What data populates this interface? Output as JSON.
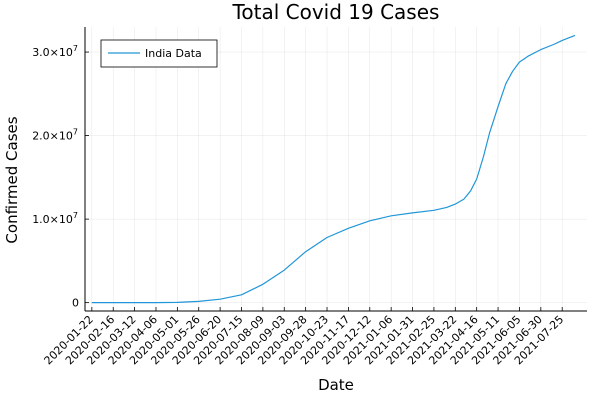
{
  "chart_data": {
    "type": "line",
    "title": "Total Covid 19 Cases",
    "xlabel": "Date",
    "ylabel": "Confirmed Cases",
    "x_tick_labels": [
      "2020-01-22",
      "2020-02-16",
      "2020-03-12",
      "2020-04-06",
      "2020-05-01",
      "2020-05-26",
      "2020-06-20",
      "2020-07-15",
      "2020-08-09",
      "2020-09-03",
      "2020-09-28",
      "2020-10-23",
      "2020-11-17",
      "2020-12-12",
      "2021-01-06",
      "2021-01-31",
      "2021-02-25",
      "2021-03-22",
      "2021-04-16",
      "2021-05-11",
      "2021-06-05",
      "2021-06-30",
      "2021-07-25"
    ],
    "y_ticks": [
      {
        "value": 0,
        "mantissa": "0",
        "exp": ""
      },
      {
        "value": 10000000,
        "mantissa": "1.0×10",
        "exp": "7"
      },
      {
        "value": 20000000,
        "mantissa": "2.0×10",
        "exp": "7"
      },
      {
        "value": 30000000,
        "mantissa": "3.0×10",
        "exp": "7"
      }
    ],
    "ylim": [
      -1000000,
      33000000
    ],
    "xlim": [
      "2020-01-14",
      "2021-08-23"
    ],
    "grid": true,
    "legend_position": "top-left",
    "series": [
      {
        "name": "India Data",
        "color": "#2196d8",
        "points": [
          [
            "2020-01-22",
            0
          ],
          [
            "2020-02-16",
            3
          ],
          [
            "2020-03-12",
            70
          ],
          [
            "2020-04-06",
            4800
          ],
          [
            "2020-05-01",
            35000
          ],
          [
            "2020-05-26",
            150000
          ],
          [
            "2020-06-20",
            410000
          ],
          [
            "2020-07-15",
            940000
          ],
          [
            "2020-08-09",
            2200000
          ],
          [
            "2020-09-03",
            3900000
          ],
          [
            "2020-09-28",
            6100000
          ],
          [
            "2020-10-23",
            7800000
          ],
          [
            "2020-11-17",
            8900000
          ],
          [
            "2020-12-12",
            9800000
          ],
          [
            "2021-01-06",
            10400000
          ],
          [
            "2021-01-31",
            10750000
          ],
          [
            "2021-02-25",
            11050000
          ],
          [
            "2021-03-12",
            11400000
          ],
          [
            "2021-03-22",
            11800000
          ],
          [
            "2021-04-01",
            12400000
          ],
          [
            "2021-04-09",
            13400000
          ],
          [
            "2021-04-16",
            14800000
          ],
          [
            "2021-04-24",
            17500000
          ],
          [
            "2021-05-01",
            20300000
          ],
          [
            "2021-05-11",
            23500000
          ],
          [
            "2021-05-20",
            26200000
          ],
          [
            "2021-05-28",
            27700000
          ],
          [
            "2021-06-05",
            28800000
          ],
          [
            "2021-06-15",
            29500000
          ],
          [
            "2021-06-30",
            30300000
          ],
          [
            "2021-07-15",
            30900000
          ],
          [
            "2021-07-25",
            31400000
          ],
          [
            "2021-08-09",
            32000000
          ]
        ]
      }
    ]
  }
}
